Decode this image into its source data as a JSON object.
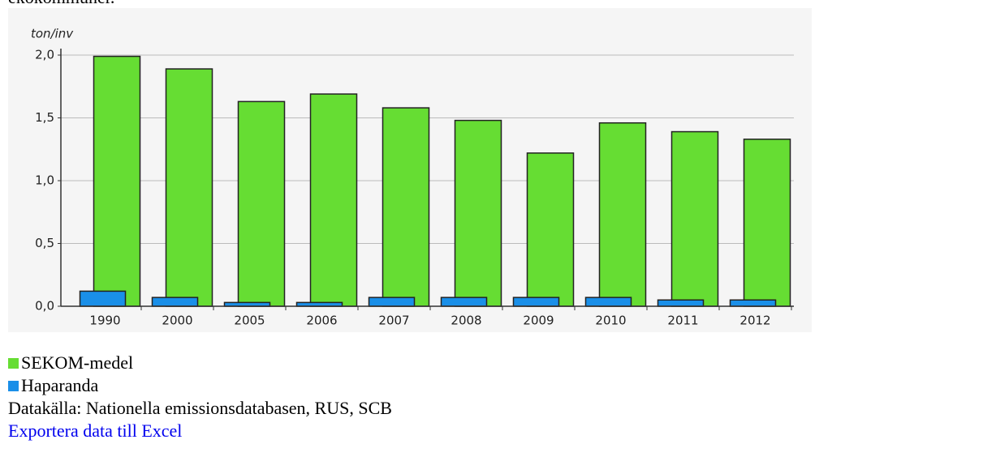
{
  "page_text": "ekokommuner.",
  "chart_data": {
    "type": "bar",
    "y_label": "ton/inv",
    "categories": [
      "1990",
      "2000",
      "2005",
      "2006",
      "2007",
      "2008",
      "2009",
      "2010",
      "2011",
      "2012"
    ],
    "series": [
      {
        "name": "SEKOM-medel",
        "color": "#66dd33",
        "values": [
          1.99,
          1.89,
          1.63,
          1.69,
          1.58,
          1.48,
          1.22,
          1.46,
          1.39,
          1.33
        ]
      },
      {
        "name": "Haparanda",
        "color": "#1a8fe8",
        "values": [
          0.12,
          0.07,
          0.03,
          0.03,
          0.07,
          0.07,
          0.07,
          0.07,
          0.05,
          0.05
        ]
      }
    ],
    "ylim": [
      0,
      2.0
    ],
    "yticks": [
      {
        "value": 0,
        "label": "0,0"
      },
      {
        "value": 0.5,
        "label": "0,5"
      },
      {
        "value": 1.0,
        "label": "1,0"
      },
      {
        "value": 1.5,
        "label": "1,5"
      },
      {
        "value": 2.0,
        "label": "2,0"
      }
    ],
    "grid": true,
    "source": "Datakälla: Nationella emissionsdatabasen, RUS, SCB",
    "export_link": "Exportera data till Excel"
  }
}
